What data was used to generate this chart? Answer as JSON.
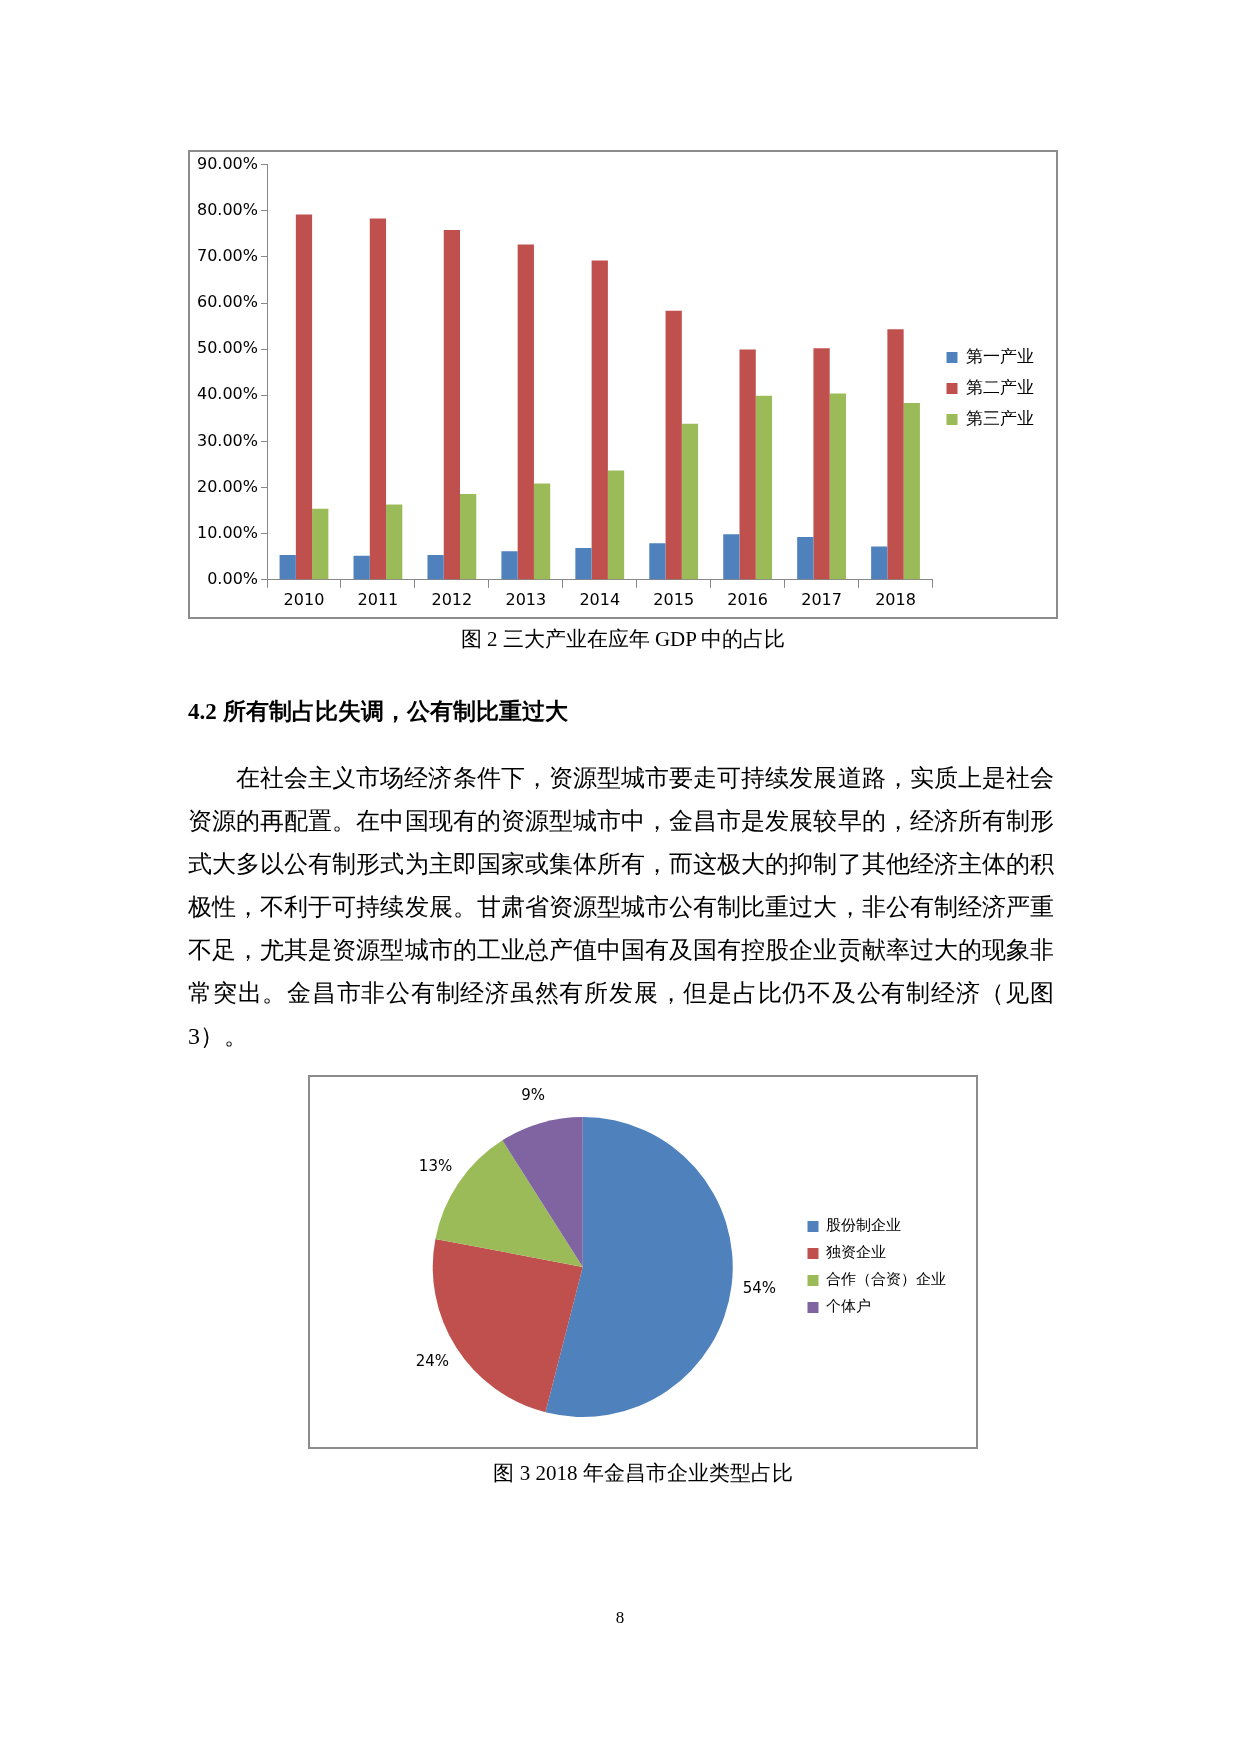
{
  "chart_data": [
    {
      "type": "bar",
      "title": "图 2 三大产业在应年 GDP 中的占比",
      "categories": [
        "2010",
        "2011",
        "2012",
        "2013",
        "2014",
        "2015",
        "2016",
        "2017",
        "2018"
      ],
      "series": [
        {
          "name": "第一产业",
          "color": "#4f81bd",
          "values": [
            5.4,
            5.2,
            5.4,
            6.2,
            6.9,
            7.9,
            9.9,
            9.3,
            7.2
          ]
        },
        {
          "name": "第二产业",
          "color": "#c0504d",
          "values": [
            79.2,
            78.3,
            75.8,
            72.7,
            69.2,
            58.3,
            49.9,
            50.2,
            54.3
          ]
        },
        {
          "name": "第三产业",
          "color": "#9bbb59",
          "values": [
            15.4,
            16.3,
            18.6,
            20.9,
            23.7,
            33.8,
            39.9,
            40.4,
            38.3
          ]
        }
      ],
      "ylim": [
        0,
        90
      ],
      "yticks": [
        {
          "value": 0,
          "label": "0.00%"
        },
        {
          "value": 10,
          "label": "10.00%"
        },
        {
          "value": 20,
          "label": "20.00%"
        },
        {
          "value": 30,
          "label": "30.00%"
        },
        {
          "value": 40,
          "label": "40.00%"
        },
        {
          "value": 50,
          "label": "50.00%"
        },
        {
          "value": 60,
          "label": "60.00%"
        },
        {
          "value": 70,
          "label": "70.00%"
        },
        {
          "value": 80,
          "label": "80.00%"
        },
        {
          "value": 90,
          "label": "90.00%"
        }
      ],
      "legend": "right",
      "annotations": [
        "4.2 所有制占比失调，公有制比重过大",
        "在社会主义市场经济条件下，资源型城市要走可持续发展道路，实质上是社会资源的再配置。在中国现有的资源型城市中，金昌市是发展较早的，经济所有制形式大多以公有制形式为主即国家或集体所有，而这极大的抑制了其他经济主体的积极性，不利于可持续发展。甘肃省资源型城市公有制比重过大，非公有制经济严重不足，尤其是资源型城市的工业总产值中国有及国有控股企业贡献率过大的现象非常突出。金昌市非公有制经济虽然有所发展，但是占比仍不及公有制经济（见图 3）。"
      ]
    },
    {
      "type": "pie",
      "title": "图 3 2018 年金昌市企业类型占比",
      "categories": [
        "股份制企业",
        "独资企业",
        "合作（合资）企业",
        "个体户"
      ],
      "values": [
        54,
        24,
        13,
        9
      ],
      "colors": [
        "#4f81bd",
        "#c0504d",
        "#9bbb59",
        "#8064a2"
      ],
      "value_labels": [
        "54%",
        "24%",
        "13%",
        "9%"
      ],
      "legend": "right",
      "annotations": [
        "8"
      ]
    }
  ]
}
